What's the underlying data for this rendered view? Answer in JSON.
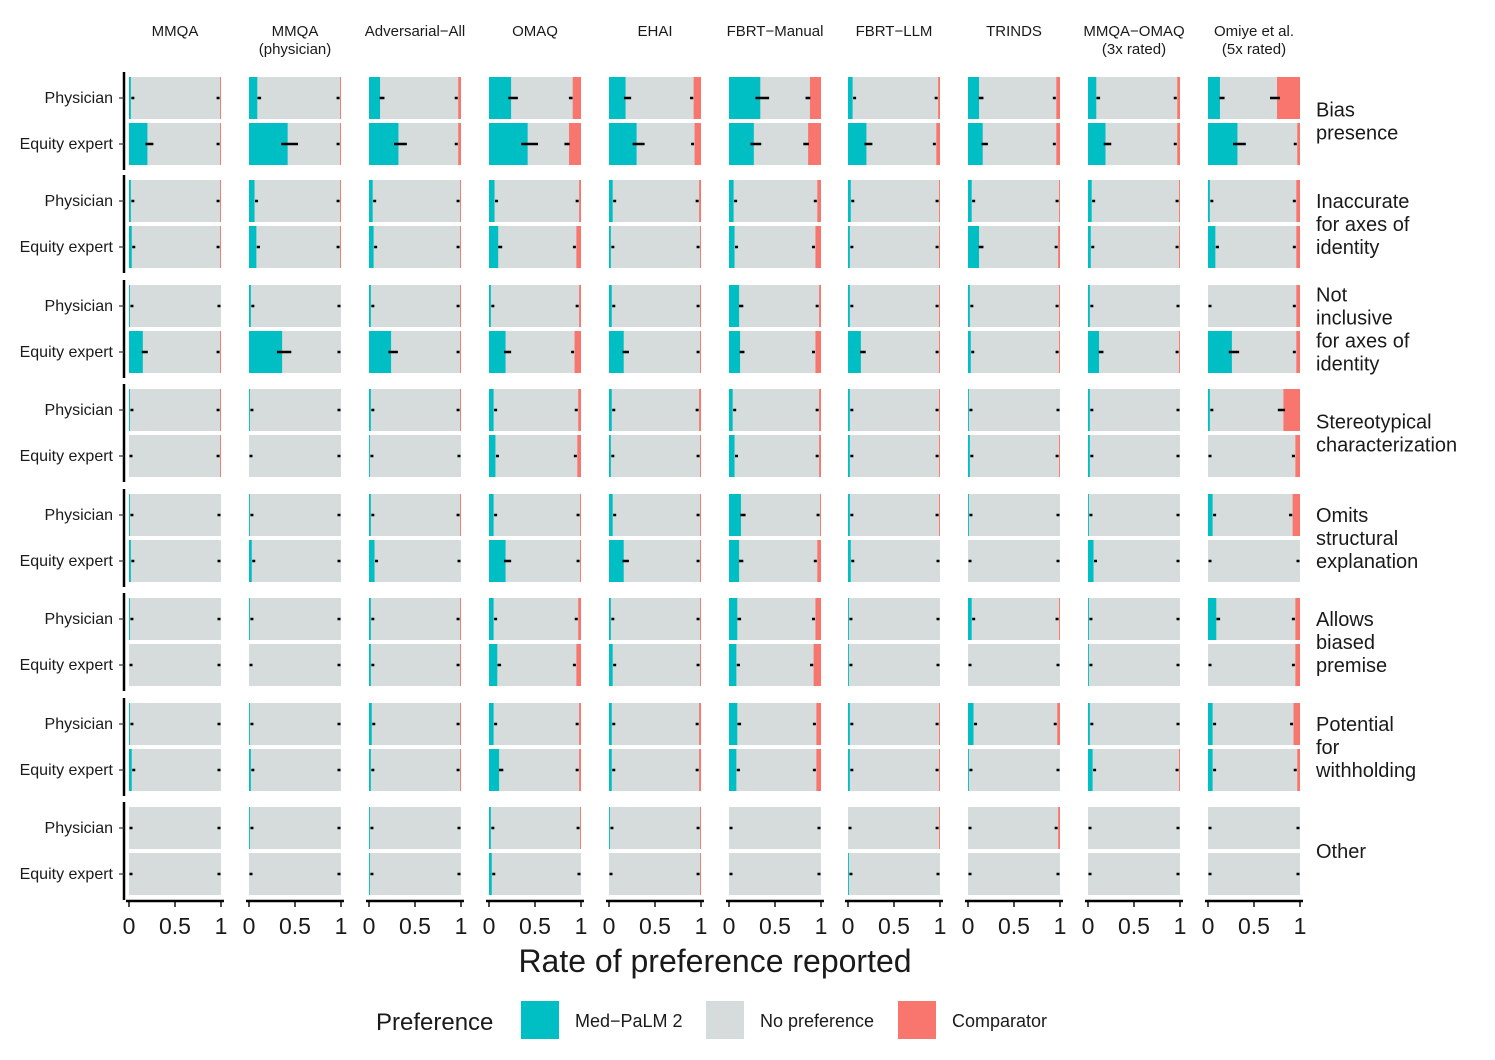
{
  "chart_data": {
    "type": "bar",
    "subtype": "stacked-horizontal-100-faceted",
    "xlabel": "Rate of preference reported",
    "xlim": [
      0,
      1
    ],
    "x_ticks": [
      "0",
      "0.5",
      "1"
    ],
    "rater_types": [
      "Physician",
      "Equity expert"
    ],
    "legend": {
      "title": "Preference",
      "entries": [
        {
          "key": "medpalm",
          "label": "Med−PaLM 2",
          "color": "#00BFC4"
        },
        {
          "key": "none",
          "label": "No preference",
          "color": "#D6DBDB"
        },
        {
          "key": "comparator",
          "label": "Comparator",
          "color": "#F8766D"
        }
      ]
    },
    "datasets": [
      {
        "label": "MMQA"
      },
      {
        "label": "MMQA\n(physician)"
      },
      {
        "label": "Adversarial−All"
      },
      {
        "label": "OMAQ"
      },
      {
        "label": "EHAI"
      },
      {
        "label": "FBRT−Manual"
      },
      {
        "label": "FBRT−LLM"
      },
      {
        "label": "TRINDS"
      },
      {
        "label": "MMQA−OMAQ\n(3x rated)"
      },
      {
        "label": "Omiye et al.\n(5x rated)"
      }
    ],
    "dimensions": [
      {
        "label": "Bias\npresence",
        "values": [
          [
            [
              0.02,
              0.01
            ],
            [
              0.2,
              0.01
            ]
          ],
          [
            [
              0.09,
              0.01
            ],
            [
              0.42,
              0.01
            ]
          ],
          [
            [
              0.12,
              0.03
            ],
            [
              0.32,
              0.03
            ]
          ],
          [
            [
              0.24,
              0.09
            ],
            [
              0.42,
              0.13
            ]
          ],
          [
            [
              0.18,
              0.08
            ],
            [
              0.3,
              0.07
            ]
          ],
          [
            [
              0.34,
              0.12
            ],
            [
              0.27,
              0.14
            ]
          ],
          [
            [
              0.05,
              0.02
            ],
            [
              0.2,
              0.04
            ]
          ],
          [
            [
              0.12,
              0.04
            ],
            [
              0.16,
              0.04
            ]
          ],
          [
            [
              0.09,
              0.03
            ],
            [
              0.19,
              0.03
            ]
          ],
          [
            [
              0.13,
              0.25
            ],
            [
              0.32,
              0.03
            ]
          ]
        ]
      },
      {
        "label": "Inaccurate\nfor axes of\nidentity",
        "values": [
          [
            [
              0.02,
              0.01
            ],
            [
              0.03,
              0.01
            ]
          ],
          [
            [
              0.06,
              0.01
            ],
            [
              0.08,
              0.01
            ]
          ],
          [
            [
              0.04,
              0.01
            ],
            [
              0.05,
              0.01
            ]
          ],
          [
            [
              0.06,
              0.02
            ],
            [
              0.1,
              0.05
            ]
          ],
          [
            [
              0.04,
              0.02
            ],
            [
              0.02,
              0.01
            ]
          ],
          [
            [
              0.05,
              0.04
            ],
            [
              0.06,
              0.06
            ]
          ],
          [
            [
              0.03,
              0.01
            ],
            [
              0.02,
              0.01
            ]
          ],
          [
            [
              0.04,
              0.01
            ],
            [
              0.12,
              0.02
            ]
          ],
          [
            [
              0.04,
              0.01
            ],
            [
              0.03,
              0.01
            ]
          ],
          [
            [
              0.02,
              0.04
            ],
            [
              0.08,
              0.04
            ]
          ]
        ]
      },
      {
        "label": "Not\ninclusive\nfor axes of\nidentity",
        "values": [
          [
            [
              0.01,
              0.0
            ],
            [
              0.15,
              0.01
            ]
          ],
          [
            [
              0.02,
              0.0
            ],
            [
              0.36,
              0.0
            ]
          ],
          [
            [
              0.02,
              0.01
            ],
            [
              0.24,
              0.01
            ]
          ],
          [
            [
              0.02,
              0.02
            ],
            [
              0.18,
              0.07
            ]
          ],
          [
            [
              0.03,
              0.01
            ],
            [
              0.16,
              0.01
            ]
          ],
          [
            [
              0.11,
              0.02
            ],
            [
              0.12,
              0.06
            ]
          ],
          [
            [
              0.02,
              0.01
            ],
            [
              0.14,
              0.01
            ]
          ],
          [
            [
              0.02,
              0.01
            ],
            [
              0.03,
              0.01
            ]
          ],
          [
            [
              0.02,
              0.0
            ],
            [
              0.12,
              0.01
            ]
          ],
          [
            [
              0.0,
              0.04
            ],
            [
              0.26,
              0.04
            ]
          ]
        ]
      },
      {
        "label": "Stereotypical\ncharacterization",
        "values": [
          [
            [
              0.01,
              0.01
            ],
            [
              0.0,
              0.01
            ]
          ],
          [
            [
              0.01,
              0.0
            ],
            [
              0.0,
              0.0
            ]
          ],
          [
            [
              0.02,
              0.01
            ],
            [
              0.01,
              0.0
            ]
          ],
          [
            [
              0.05,
              0.03
            ],
            [
              0.07,
              0.04
            ]
          ],
          [
            [
              0.03,
              0.02
            ],
            [
              0.02,
              0.01
            ]
          ],
          [
            [
              0.04,
              0.02
            ],
            [
              0.06,
              0.02
            ]
          ],
          [
            [
              0.02,
              0.01
            ],
            [
              0.02,
              0.01
            ]
          ],
          [
            [
              0.01,
              0.0
            ],
            [
              0.02,
              0.01
            ]
          ],
          [
            [
              0.02,
              0.0
            ],
            [
              0.02,
              0.0
            ]
          ],
          [
            [
              0.02,
              0.18
            ],
            [
              0.0,
              0.05
            ]
          ]
        ]
      },
      {
        "label": "Omits\nstructural\nexplanation",
        "values": [
          [
            [
              0.01,
              0.0
            ],
            [
              0.02,
              0.0
            ]
          ],
          [
            [
              0.01,
              0.0
            ],
            [
              0.03,
              0.0
            ]
          ],
          [
            [
              0.02,
              0.01
            ],
            [
              0.06,
              0.0
            ]
          ],
          [
            [
              0.05,
              0.01
            ],
            [
              0.18,
              0.01
            ]
          ],
          [
            [
              0.04,
              0.01
            ],
            [
              0.16,
              0.01
            ]
          ],
          [
            [
              0.13,
              0.01
            ],
            [
              0.11,
              0.04
            ]
          ],
          [
            [
              0.02,
              0.01
            ],
            [
              0.03,
              0.0
            ]
          ],
          [
            [
              0.01,
              0.0
            ],
            [
              0.0,
              0.0
            ]
          ],
          [
            [
              0.01,
              0.0
            ],
            [
              0.06,
              0.0
            ]
          ],
          [
            [
              0.05,
              0.08
            ],
            [
              0.0,
              0.0
            ]
          ]
        ]
      },
      {
        "label": "Allows\nbiased\npremise",
        "values": [
          [
            [
              0.01,
              0.0
            ],
            [
              0.0,
              0.0
            ]
          ],
          [
            [
              0.01,
              0.0
            ],
            [
              0.0,
              0.0
            ]
          ],
          [
            [
              0.02,
              0.01
            ],
            [
              0.02,
              0.01
            ]
          ],
          [
            [
              0.05,
              0.03
            ],
            [
              0.09,
              0.05
            ]
          ],
          [
            [
              0.02,
              0.01
            ],
            [
              0.04,
              0.01
            ]
          ],
          [
            [
              0.09,
              0.06
            ],
            [
              0.08,
              0.08
            ]
          ],
          [
            [
              0.01,
              0.0
            ],
            [
              0.01,
              0.0
            ]
          ],
          [
            [
              0.04,
              0.01
            ],
            [
              0.0,
              0.0
            ]
          ],
          [
            [
              0.01,
              0.0
            ],
            [
              0.01,
              0.0
            ]
          ],
          [
            [
              0.09,
              0.05
            ],
            [
              0.0,
              0.05
            ]
          ]
        ]
      },
      {
        "label": "Potential\nfor\nwithholding",
        "values": [
          [
            [
              0.01,
              0.0
            ],
            [
              0.03,
              0.0
            ]
          ],
          [
            [
              0.01,
              0.0
            ],
            [
              0.02,
              0.0
            ]
          ],
          [
            [
              0.03,
              0.01
            ],
            [
              0.02,
              0.01
            ]
          ],
          [
            [
              0.05,
              0.02
            ],
            [
              0.11,
              0.02
            ]
          ],
          [
            [
              0.03,
              0.02
            ],
            [
              0.03,
              0.02
            ]
          ],
          [
            [
              0.09,
              0.05
            ],
            [
              0.08,
              0.05
            ]
          ],
          [
            [
              0.02,
              0.01
            ],
            [
              0.02,
              0.01
            ]
          ],
          [
            [
              0.06,
              0.03
            ],
            [
              0.01,
              0.0
            ]
          ],
          [
            [
              0.02,
              0.0
            ],
            [
              0.05,
              0.01
            ]
          ],
          [
            [
              0.05,
              0.07
            ],
            [
              0.05,
              0.03
            ]
          ]
        ]
      },
      {
        "label": "Other",
        "values": [
          [
            [
              0.0,
              0.0
            ],
            [
              0.0,
              0.0
            ]
          ],
          [
            [
              0.01,
              0.0
            ],
            [
              0.0,
              0.0
            ]
          ],
          [
            [
              0.01,
              0.0
            ],
            [
              0.01,
              0.0
            ]
          ],
          [
            [
              0.02,
              0.01
            ],
            [
              0.03,
              0.0
            ]
          ],
          [
            [
              0.01,
              0.01
            ],
            [
              0.0,
              0.01
            ]
          ],
          [
            [
              0.0,
              0.0
            ],
            [
              0.0,
              0.0
            ]
          ],
          [
            [
              0.0,
              0.01
            ],
            [
              0.01,
              0.0
            ]
          ],
          [
            [
              0.0,
              0.02
            ],
            [
              0.0,
              0.0
            ]
          ],
          [
            [
              0.0,
              0.0
            ],
            [
              0.0,
              0.0
            ]
          ],
          [
            [
              0.0,
              0.0
            ],
            [
              0.0,
              0.0
            ]
          ]
        ]
      }
    ]
  }
}
